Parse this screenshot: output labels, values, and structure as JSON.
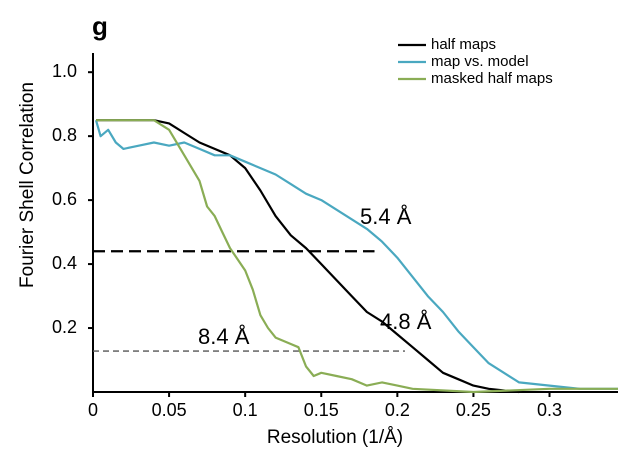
{
  "chart_data": {
    "type": "line",
    "panel_label": "g",
    "xlabel": "Resolution (1/Å)",
    "ylabel": "Fourier Shell Correlation",
    "xlim": [
      0,
      0.345
    ],
    "ylim": [
      0,
      1.06
    ],
    "xticks": [
      0,
      0.05,
      0.1,
      0.15,
      0.2,
      0.25,
      0.3
    ],
    "yticks": [
      0.2,
      0.4,
      0.6,
      0.8,
      {
        "value": 1,
        "label": "1.0"
      }
    ],
    "legend_position": "upper right",
    "series": [
      {
        "name": "half maps",
        "color": "#000000",
        "x": [
          0.002,
          0.04,
          0.05,
          0.06,
          0.07,
          0.08,
          0.09,
          0.1,
          0.11,
          0.12,
          0.13,
          0.14,
          0.15,
          0.16,
          0.17,
          0.18,
          0.19,
          0.2,
          0.21,
          0.22,
          0.23,
          0.24,
          0.25,
          0.26,
          0.28
        ],
        "values": [
          0.85,
          0.85,
          0.84,
          0.81,
          0.78,
          0.76,
          0.74,
          0.7,
          0.63,
          0.55,
          0.49,
          0.45,
          0.4,
          0.35,
          0.3,
          0.25,
          0.22,
          0.18,
          0.14,
          0.1,
          0.06,
          0.04,
          0.02,
          0.01,
          0.0
        ]
      },
      {
        "name": "map vs. model",
        "color": "#4aa8c0",
        "x": [
          0.002,
          0.005,
          0.01,
          0.015,
          0.02,
          0.03,
          0.04,
          0.05,
          0.06,
          0.07,
          0.08,
          0.09,
          0.1,
          0.11,
          0.12,
          0.13,
          0.14,
          0.15,
          0.16,
          0.17,
          0.18,
          0.19,
          0.2,
          0.21,
          0.22,
          0.23,
          0.24,
          0.25,
          0.26,
          0.27,
          0.28,
          0.3,
          0.32,
          0.345
        ],
        "values": [
          0.85,
          0.8,
          0.82,
          0.78,
          0.76,
          0.77,
          0.78,
          0.77,
          0.78,
          0.76,
          0.74,
          0.74,
          0.72,
          0.7,
          0.68,
          0.65,
          0.62,
          0.6,
          0.57,
          0.54,
          0.51,
          0.47,
          0.42,
          0.36,
          0.3,
          0.25,
          0.19,
          0.14,
          0.09,
          0.06,
          0.03,
          0.02,
          0.01,
          0.01
        ]
      },
      {
        "name": "masked half maps",
        "color": "#8aad55",
        "x": [
          0.002,
          0.04,
          0.05,
          0.06,
          0.07,
          0.075,
          0.08,
          0.085,
          0.09,
          0.1,
          0.105,
          0.11,
          0.115,
          0.12,
          0.13,
          0.135,
          0.14,
          0.145,
          0.15,
          0.16,
          0.17,
          0.18,
          0.19,
          0.2,
          0.21,
          0.25,
          0.3,
          0.345
        ],
        "values": [
          0.85,
          0.85,
          0.82,
          0.74,
          0.66,
          0.58,
          0.55,
          0.5,
          0.45,
          0.38,
          0.32,
          0.24,
          0.2,
          0.17,
          0.15,
          0.14,
          0.08,
          0.05,
          0.06,
          0.05,
          0.04,
          0.02,
          0.03,
          0.02,
          0.01,
          0.0,
          0.01,
          0.01
        ]
      }
    ],
    "reference_lines": [
      {
        "y": 0.44,
        "x_end": 0.185,
        "color": "#000000"
      },
      {
        "y": 0.128,
        "x_end": 0.205,
        "color": "#555555"
      }
    ],
    "annotations": [
      "5.4 Å",
      "4.8 Å",
      "8.4 Å"
    ]
  }
}
